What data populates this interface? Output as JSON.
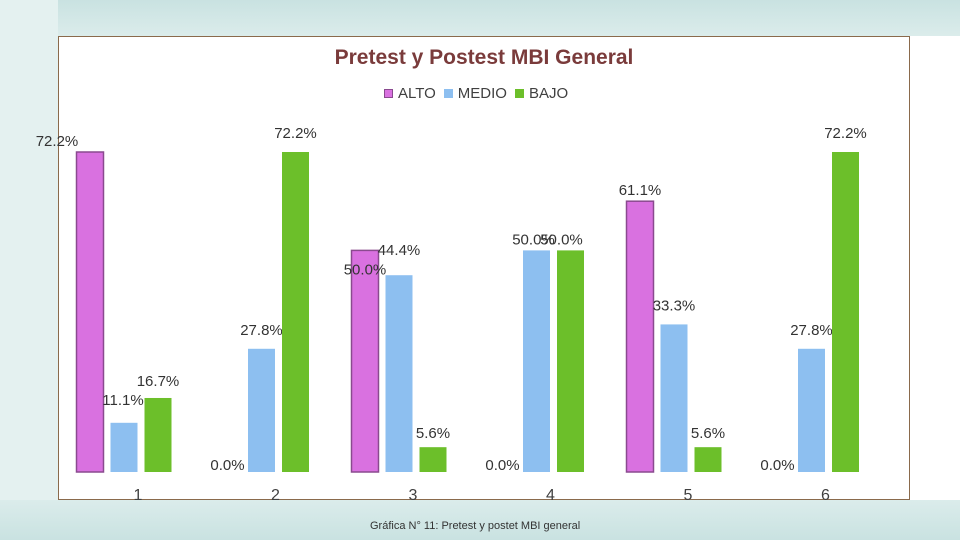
{
  "chart_data": {
    "type": "bar",
    "title": "Pretest y Postest MBI General",
    "categories": [
      "1",
      "2",
      "3",
      "4",
      "5",
      "6"
    ],
    "series": [
      {
        "name": "ALTO",
        "color": "#d971e0",
        "values": [
          72.2,
          0.0,
          50.0,
          0.0,
          61.1,
          0.0
        ],
        "labels": [
          "72.2%",
          "0.0%",
          "50.0%",
          "0.0%",
          "61.1%",
          "0.0%"
        ]
      },
      {
        "name": "MEDIO",
        "color": "#8dbff0",
        "values": [
          11.1,
          27.8,
          44.4,
          50.0,
          33.3,
          27.8
        ],
        "labels": [
          "11.1%",
          "27.8%",
          "44.4%",
          "50.0%",
          "33.3%",
          "27.8%"
        ]
      },
      {
        "name": "BAJO",
        "color": "#6cbf2a",
        "values": [
          16.7,
          72.2,
          5.6,
          50.0,
          5.6,
          72.2
        ],
        "labels": [
          "16.7%",
          "72.2%",
          "5.6%",
          "50.0%",
          "5.6%",
          "72.2%"
        ]
      }
    ],
    "ylim": [
      0,
      72.2
    ],
    "xlabel": "",
    "ylabel": "",
    "grid": false,
    "legend": "top-center"
  },
  "caption": "Gráfica N° 11: Pretest y postet MBI general"
}
